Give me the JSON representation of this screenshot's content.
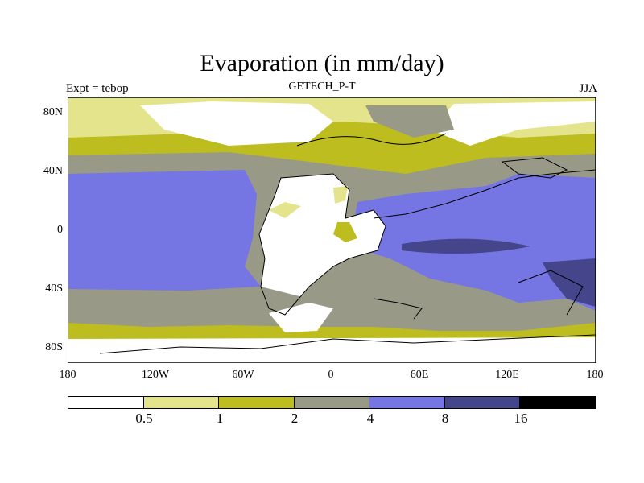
{
  "title": "Evaporation (in mm/day)",
  "subtitle_left": "Expt = tebop",
  "subtitle_center": "GETECH_P-T",
  "subtitle_right": "JJA",
  "y_ticks": [
    "80N",
    "40N",
    "0",
    "40S",
    "80S"
  ],
  "x_ticks": [
    "180",
    "120W",
    "60W",
    "0",
    "60E",
    "120E",
    "180"
  ],
  "colorbar": {
    "labels": [
      "0.5",
      "1",
      "2",
      "4",
      "8",
      "16"
    ],
    "colors": [
      "#ffffff",
      "#e4e48c",
      "#bdbd1f",
      "#999988",
      "#7575e3",
      "#45458c",
      "#000000"
    ]
  }
}
